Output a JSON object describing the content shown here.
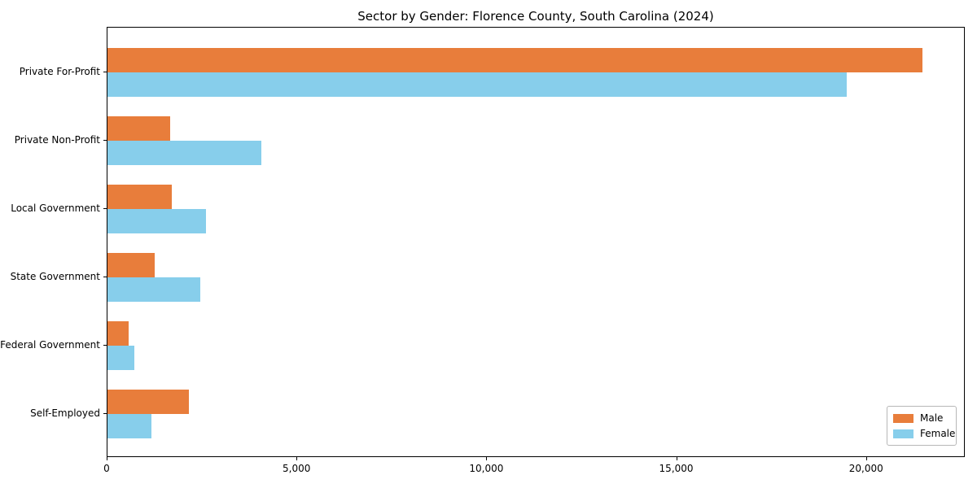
{
  "title": "Sector by Gender: Florence County, South Carolina (2024)",
  "colors": {
    "male": "#E87D3B",
    "female": "#87CEEB",
    "axis": "#000000",
    "background": "#FFFFFF"
  },
  "legend": {
    "position": "lower right",
    "items": [
      {
        "label": "Male",
        "color": "#E87D3B"
      },
      {
        "label": "Female",
        "color": "#87CEEB"
      }
    ]
  },
  "chart_data": {
    "type": "bar",
    "orientation": "horizontal",
    "title": "Sector by Gender: Florence County, South Carolina (2024)",
    "categories": [
      "Private For-Profit",
      "Private Non-Profit",
      "Local Government",
      "State Government",
      "Federal Government",
      "Self-Employed"
    ],
    "series": [
      {
        "name": "Male",
        "color": "#E87D3B",
        "values": [
          21500,
          1650,
          1700,
          1250,
          550,
          2150
        ]
      },
      {
        "name": "Female",
        "color": "#87CEEB",
        "values": [
          19500,
          4050,
          2600,
          2450,
          700,
          1150
        ]
      }
    ],
    "xlabel": "",
    "ylabel": "",
    "xlim": [
      0,
      22600
    ],
    "xticks": [
      0,
      5000,
      10000,
      15000,
      20000
    ],
    "xtick_labels": [
      "0",
      "5,000",
      "10,000",
      "15,000",
      "20,000"
    ],
    "grid": false,
    "legend_position": "lower right"
  }
}
